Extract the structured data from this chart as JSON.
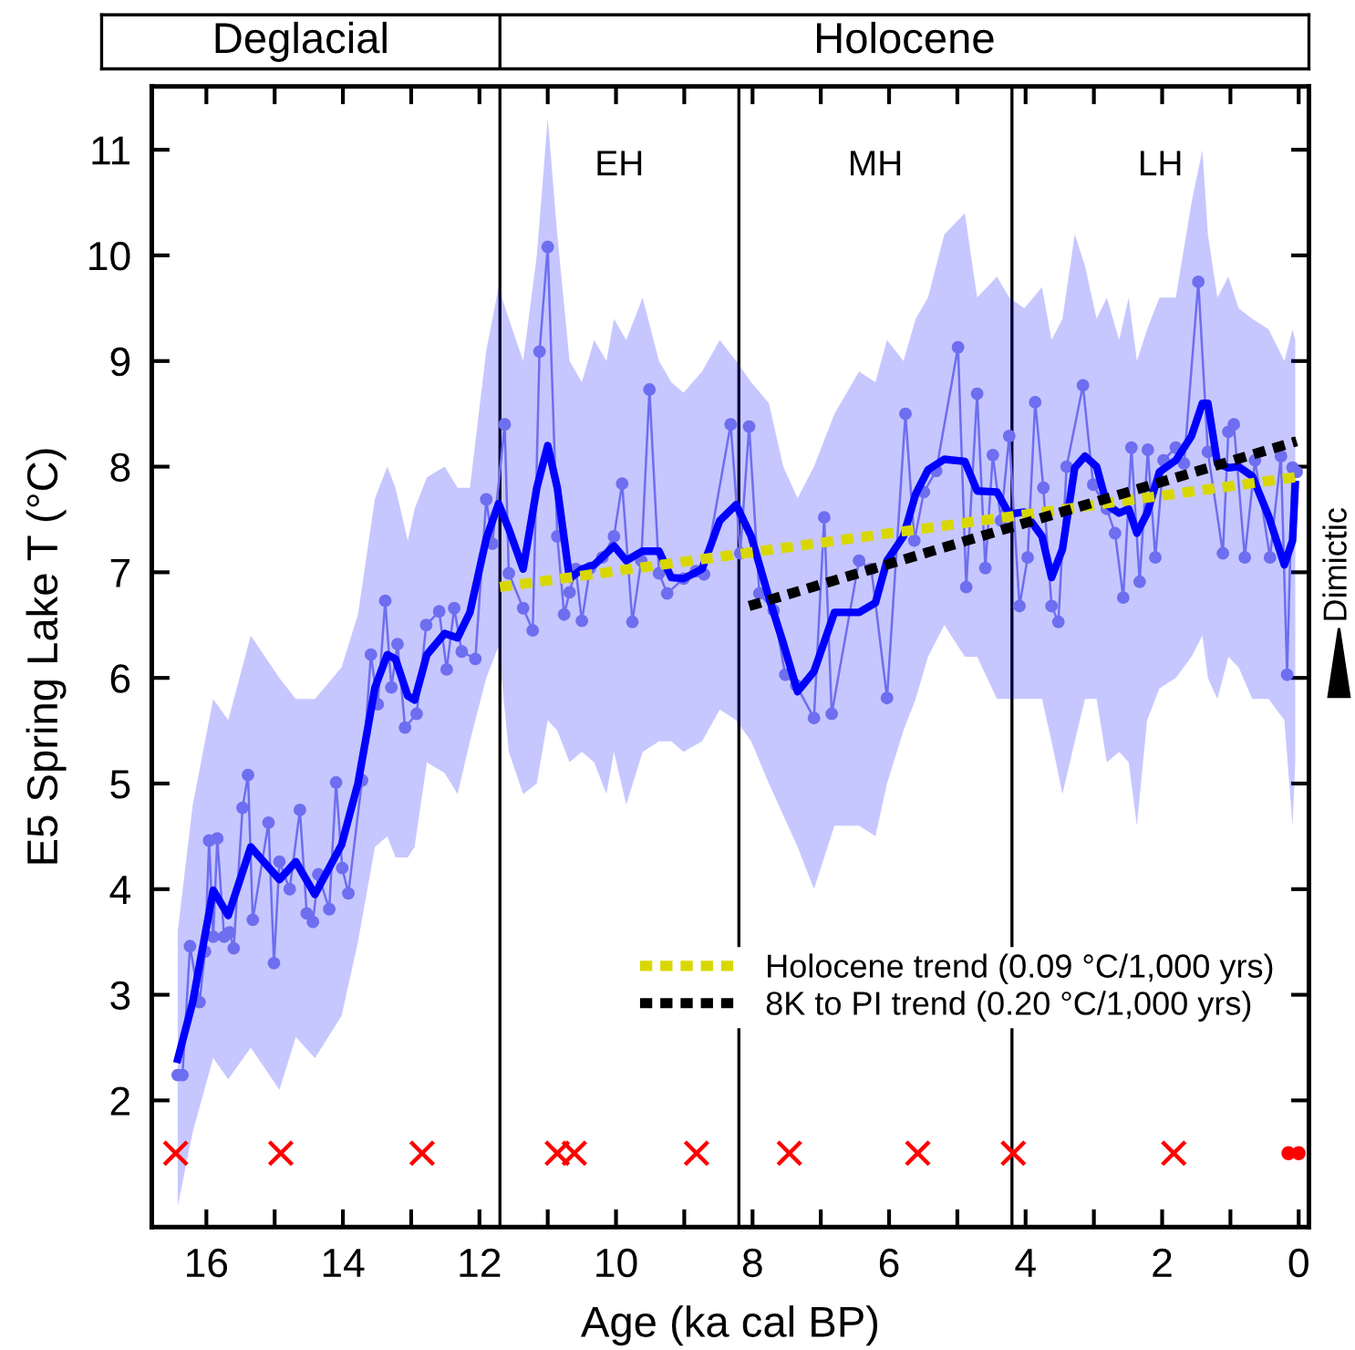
{
  "chart_data": {
    "type": "line",
    "xlabel": "Age (ka cal BP)",
    "ylabel": "E5 Spring Lake T (°C)",
    "xlim": [
      16.8,
      -0.15
    ],
    "ylim": [
      0.8,
      11.6
    ],
    "xticks": [
      16,
      {
        "value": 15,
        "label": null
      },
      14,
      {
        "value": 13,
        "label": null
      },
      12,
      {
        "value": 11,
        "label": null
      },
      10,
      {
        "value": 9,
        "label": null
      },
      8,
      {
        "value": 7,
        "label": null
      },
      6,
      {
        "value": 5,
        "label": null
      },
      4,
      {
        "value": 3,
        "label": null
      },
      2,
      {
        "value": 1,
        "label": null
      },
      0
    ],
    "yticks": [
      2,
      3,
      4,
      5,
      6,
      7,
      8,
      9,
      10,
      11
    ],
    "grid": false,
    "legend": "bottom right",
    "annotations": [
      "Deglacial",
      "Holocene",
      "EH",
      "MH",
      "LH",
      "Dimictic"
    ],
    "ref_lines": [
      {
        "axis": "x",
        "value": 11.7,
        "color": "#000000"
      },
      {
        "axis": "x",
        "value": 8.2,
        "color": "#000000"
      },
      {
        "axis": "x",
        "value": 4.2,
        "color": "#000000"
      }
    ],
    "series": [
      {
        "marker": "circle",
        "color": "#6e6ef0",
        "x": [
          16.42,
          16.35,
          16.24,
          16.1,
          16.02,
          15.96,
          15.9,
          15.84,
          15.74,
          15.66,
          15.6,
          15.47,
          15.39,
          15.32,
          15.09,
          15.01,
          14.93,
          14.78,
          14.63,
          14.53,
          14.44,
          14.36,
          14.2,
          14.1,
          14.01,
          13.92,
          13.72,
          13.59,
          13.49,
          13.38,
          13.29,
          13.2,
          13.09,
          12.92,
          12.78,
          12.59,
          12.48,
          12.37,
          12.26,
          12.06,
          11.9,
          11.81,
          11.63,
          11.57,
          11.36,
          11.22,
          11.12,
          11.0,
          10.86,
          10.76,
          10.68,
          10.59,
          10.5,
          10.38,
          10.2,
          10.03,
          9.91,
          9.76,
          9.63,
          9.51,
          9.37,
          9.25,
          9.01,
          8.83,
          8.71,
          8.32,
          8.18,
          8.05,
          7.9,
          7.69,
          7.52,
          7.36,
          7.1,
          6.95,
          6.84,
          6.44,
          6.26,
          6.03,
          5.76,
          5.63,
          5.49,
          5.31,
          4.99,
          4.87,
          4.71,
          4.59,
          4.48,
          4.36,
          4.24,
          4.09,
          3.97,
          3.86,
          3.74,
          3.62,
          3.52,
          3.4,
          3.16,
          3.01,
          2.81,
          2.69,
          2.57,
          2.45,
          2.33,
          2.21,
          2.1,
          1.98,
          1.8,
          1.68,
          1.47,
          1.33,
          1.11,
          1.03,
          0.95,
          0.79,
          0.64,
          0.42,
          0.26,
          0.17,
          0.09,
          0.03
        ],
        "values": [
          2.24,
          2.24,
          3.46,
          2.93,
          3.41,
          4.46,
          3.55,
          4.48,
          3.55,
          3.59,
          3.44,
          4.77,
          5.08,
          3.71,
          4.63,
          3.3,
          4.26,
          4.0,
          4.75,
          3.77,
          3.69,
          4.14,
          3.81,
          5.01,
          4.2,
          3.96,
          5.03,
          6.22,
          5.75,
          6.73,
          5.91,
          6.32,
          5.53,
          5.66,
          6.5,
          6.63,
          6.08,
          6.66,
          6.25,
          6.18,
          7.69,
          7.27,
          8.4,
          6.99,
          6.66,
          6.45,
          9.09,
          10.08,
          7.34,
          6.6,
          6.81,
          7.03,
          6.54,
          7.04,
          7.14,
          7.34,
          7.84,
          6.53,
          7.11,
          8.73,
          6.99,
          6.8,
          6.94,
          7.01,
          6.98,
          8.4,
          7.18,
          8.38,
          6.8,
          6.64,
          6.03,
          5.93,
          5.62,
          7.52,
          5.66,
          7.11,
          7.03,
          5.81,
          8.5,
          7.3,
          7.76,
          7.96,
          9.13,
          6.86,
          8.69,
          7.04,
          8.11,
          7.49,
          8.29,
          6.68,
          7.14,
          8.61,
          7.8,
          6.68,
          6.53,
          8.0,
          8.77,
          7.83,
          7.6,
          7.37,
          6.76,
          8.18,
          6.91,
          8.16,
          7.14,
          8.06,
          8.18,
          8.03,
          9.75,
          8.14,
          7.18,
          8.33,
          8.4,
          7.14,
          8.06,
          7.14,
          8.1,
          6.03,
          7.99,
          7.95
        ]
      },
      {
        "marker": "none",
        "color": "#0000ff",
        "x": [
          16.42,
          16.2,
          15.9,
          15.68,
          15.35,
          14.93,
          14.69,
          14.41,
          14.02,
          13.78,
          13.53,
          13.35,
          13.23,
          13.05,
          12.95,
          12.77,
          12.51,
          12.32,
          12.14,
          11.9,
          11.72,
          11.57,
          11.36,
          11.16,
          11.0,
          10.86,
          10.68,
          10.5,
          10.32,
          10.14,
          10.03,
          9.85,
          9.61,
          9.37,
          9.19,
          9.01,
          8.74,
          8.48,
          8.24,
          8.02,
          7.76,
          7.55,
          7.34,
          7.1,
          6.8,
          6.44,
          6.2,
          6.03,
          5.79,
          5.61,
          5.43,
          5.19,
          4.89,
          4.71,
          4.42,
          4.24,
          4.02,
          3.76,
          3.62,
          3.46,
          3.28,
          3.13,
          2.96,
          2.81,
          2.63,
          2.49,
          2.37,
          2.22,
          2.04,
          1.8,
          1.57,
          1.41,
          1.33,
          1.19,
          1.03,
          0.88,
          0.68,
          0.44,
          0.21,
          0.09,
          0.05
        ],
        "values": [
          2.39,
          2.93,
          3.99,
          3.75,
          4.4,
          4.09,
          4.26,
          3.95,
          4.42,
          5.0,
          5.91,
          6.22,
          6.18,
          5.83,
          5.79,
          6.22,
          6.42,
          6.38,
          6.62,
          7.32,
          7.65,
          7.41,
          7.03,
          7.8,
          8.2,
          7.8,
          6.94,
          7.03,
          7.07,
          7.18,
          7.25,
          7.11,
          7.2,
          7.2,
          6.95,
          6.94,
          7.03,
          7.49,
          7.64,
          7.34,
          6.76,
          6.33,
          5.87,
          6.06,
          6.62,
          6.62,
          6.71,
          7.11,
          7.34,
          7.74,
          7.97,
          8.07,
          8.05,
          7.77,
          7.76,
          7.55,
          7.57,
          7.34,
          6.95,
          7.22,
          7.99,
          8.1,
          8.0,
          7.64,
          7.56,
          7.6,
          7.37,
          7.56,
          7.95,
          8.06,
          8.29,
          8.6,
          8.6,
          8.03,
          7.99,
          8.0,
          7.91,
          7.53,
          7.07,
          7.3,
          7.83
        ],
        "lower": [
          1.0,
          1.7,
          2.4,
          2.2,
          2.5,
          2.1,
          2.6,
          2.4,
          2.8,
          3.5,
          4.4,
          4.5,
          4.3,
          4.3,
          4.4,
          5.2,
          5.1,
          4.9,
          5.4,
          6.0,
          6.3,
          5.3,
          4.9,
          5.0,
          5.6,
          5.5,
          5.2,
          5.3,
          5.2,
          4.9,
          5.3,
          4.8,
          5.3,
          5.4,
          5.4,
          5.3,
          5.4,
          5.7,
          5.6,
          5.4,
          5.0,
          4.7,
          4.4,
          4.0,
          4.6,
          4.6,
          4.5,
          5.0,
          5.5,
          5.8,
          6.2,
          6.5,
          6.2,
          6.2,
          5.8,
          5.8,
          5.8,
          5.8,
          5.4,
          4.9,
          5.4,
          5.8,
          5.8,
          5.2,
          5.3,
          5.2,
          4.6,
          5.6,
          5.9,
          6.0,
          6.2,
          6.4,
          6.0,
          5.8,
          6.2,
          6.1,
          5.8,
          5.8,
          5.6,
          4.6,
          5.2
        ],
        "upper": [
          3.6,
          4.8,
          5.8,
          5.6,
          6.4,
          6.0,
          5.8,
          5.8,
          6.1,
          6.6,
          7.7,
          8.0,
          7.8,
          7.3,
          7.6,
          7.9,
          8.0,
          7.8,
          7.8,
          9.1,
          9.7,
          9.4,
          9.0,
          10.0,
          11.3,
          10.2,
          9.0,
          8.8,
          9.2,
          9.0,
          9.4,
          9.2,
          9.6,
          9.0,
          8.8,
          8.7,
          8.9,
          9.2,
          9.0,
          8.8,
          8.6,
          8.0,
          7.7,
          8.0,
          8.5,
          8.9,
          8.8,
          9.2,
          9.0,
          9.4,
          9.6,
          10.2,
          10.4,
          9.6,
          9.8,
          9.6,
          9.5,
          9.7,
          9.2,
          9.4,
          10.2,
          9.9,
          9.4,
          9.6,
          9.2,
          9.6,
          9.0,
          9.3,
          9.6,
          9.6,
          10.5,
          11.0,
          10.2,
          9.6,
          9.8,
          9.5,
          9.4,
          9.3,
          9.0,
          9.3,
          9.2
        ]
      },
      {
        "name": "Holocene trend (0.09 °C/1,000 yrs)",
        "line_style": "dotted",
        "marker": "none",
        "color": "#d8d800",
        "x": [
          11.7,
          0.05
        ],
        "values": [
          6.86,
          7.9
        ]
      },
      {
        "name": "8K to PI trend (0.20 °C/1,000 yrs)",
        "line_style": "dotted",
        "marker": "none",
        "color": "#000000",
        "x": [
          8.05,
          0.03
        ],
        "values": [
          6.68,
          8.24
        ]
      },
      {
        "type": "scatter",
        "marker": "cross",
        "color": "#ff0000",
        "x": [
          16.45,
          14.91,
          12.84,
          10.86,
          10.61,
          8.82,
          7.46,
          5.58,
          4.18,
          1.83
        ],
        "values": [
          1.5,
          1.5,
          1.5,
          1.5,
          1.5,
          1.5,
          1.5,
          1.5,
          1.5,
          1.5
        ]
      },
      {
        "type": "scatter",
        "marker": "circle",
        "color": "#ff0000",
        "x": [
          0.15,
          0.0
        ],
        "values": [
          1.5,
          1.5
        ]
      }
    ]
  }
}
